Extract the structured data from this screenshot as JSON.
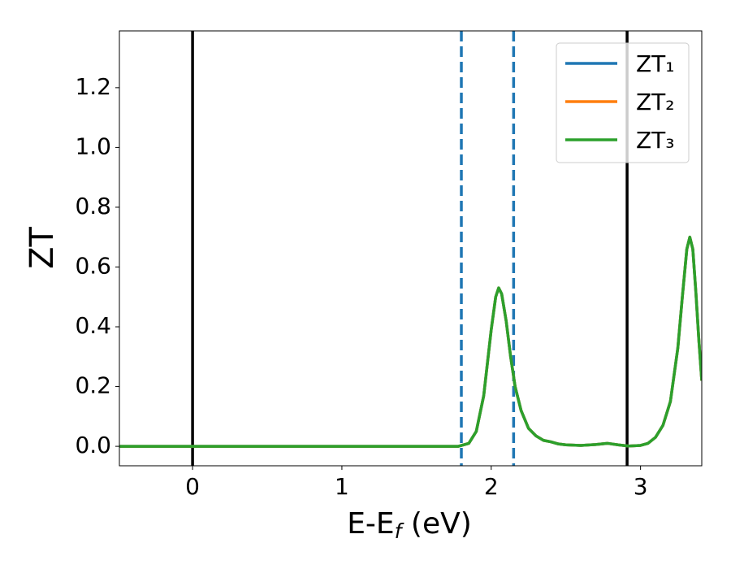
{
  "chart_data": {
    "type": "line",
    "xlabel": {
      "base": "E-E",
      "sub": "f",
      "rest": " (eV)"
    },
    "ylabel": "ZT",
    "x": [
      -0.49,
      1.78,
      1.85,
      1.9,
      1.95,
      2.0,
      2.03,
      2.05,
      2.07,
      2.1,
      2.13,
      2.16,
      2.2,
      2.25,
      2.3,
      2.35,
      2.4,
      2.45,
      2.5,
      2.6,
      2.7,
      2.78,
      2.85,
      2.92,
      3.0,
      3.05,
      3.1,
      3.15,
      3.2,
      3.25,
      3.28,
      3.31,
      3.33,
      3.35,
      3.37,
      3.39,
      3.41
    ],
    "series": [
      {
        "name": "ZT₁",
        "color": "#1f77b4",
        "values": [
          0,
          0,
          0.01,
          0.05,
          0.17,
          0.39,
          0.5,
          0.53,
          0.51,
          0.42,
          0.3,
          0.2,
          0.12,
          0.06,
          0.035,
          0.02,
          0.015,
          0.008,
          0.005,
          0.003,
          0.006,
          0.01,
          0.005,
          0.001,
          0.003,
          0.01,
          0.03,
          0.07,
          0.15,
          0.33,
          0.5,
          0.66,
          0.7,
          0.66,
          0.52,
          0.36,
          0.22
        ]
      },
      {
        "name": "ZT₂",
        "color": "#ff7f0e",
        "values": [
          0,
          0,
          0.01,
          0.05,
          0.17,
          0.39,
          0.5,
          0.53,
          0.51,
          0.42,
          0.3,
          0.2,
          0.12,
          0.06,
          0.035,
          0.02,
          0.015,
          0.008,
          0.005,
          0.003,
          0.006,
          0.01,
          0.005,
          0.001,
          0.003,
          0.01,
          0.03,
          0.07,
          0.15,
          0.33,
          0.5,
          0.66,
          0.7,
          0.66,
          0.52,
          0.36,
          0.22
        ]
      },
      {
        "name": "ZT₃",
        "color": "#2ca02c",
        "values": [
          0,
          0,
          0.01,
          0.05,
          0.17,
          0.39,
          0.5,
          0.53,
          0.51,
          0.42,
          0.3,
          0.2,
          0.12,
          0.06,
          0.035,
          0.02,
          0.015,
          0.008,
          0.005,
          0.003,
          0.006,
          0.01,
          0.005,
          0.001,
          0.003,
          0.01,
          0.03,
          0.07,
          0.15,
          0.33,
          0.5,
          0.66,
          0.7,
          0.66,
          0.52,
          0.36,
          0.22
        ]
      }
    ],
    "vlines": [
      {
        "x": 0,
        "color": "#000000",
        "style": "solid"
      },
      {
        "x": 1.8,
        "color": "#1f77b4",
        "style": "dashed"
      },
      {
        "x": 2.15,
        "color": "#1f77b4",
        "style": "dashed"
      },
      {
        "x": 2.91,
        "color": "#000000",
        "style": "solid"
      }
    ],
    "xlim": [
      -0.49,
      3.41
    ],
    "ylim": [
      -0.065,
      1.39
    ],
    "xticks": [
      0,
      1,
      2,
      3
    ],
    "yticks": [
      {
        "value": 0,
        "label": "0.0"
      },
      0.2,
      0.4,
      0.6,
      0.8,
      {
        "value": 1,
        "label": "1.0"
      },
      1.2
    ],
    "legend": "upper right"
  }
}
